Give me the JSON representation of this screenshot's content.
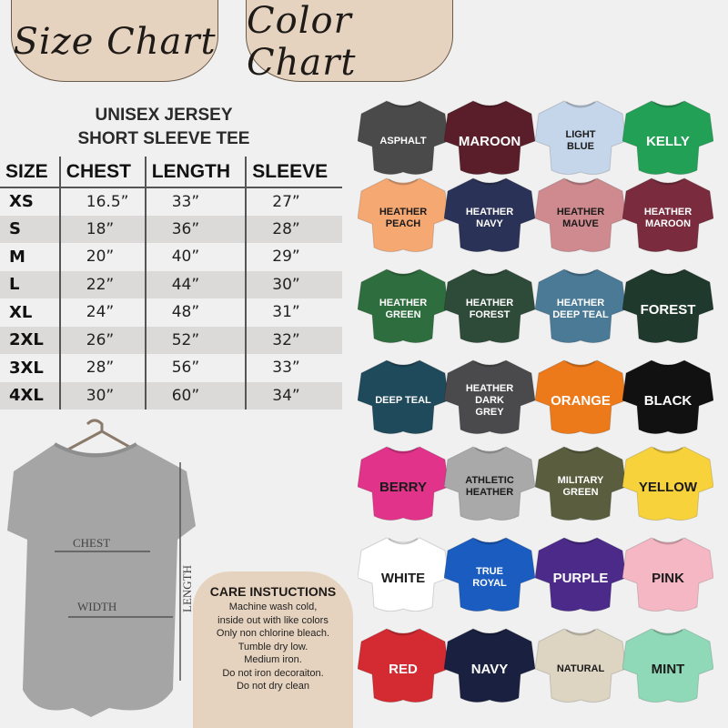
{
  "headers": {
    "size_chart": "Size Chart",
    "color_chart": "Color Chart"
  },
  "size_table": {
    "title_line1": "UNISEX JERSEY",
    "title_line2": "SHORT SLEEVE TEE",
    "columns": [
      "SIZE",
      "CHEST",
      "LENGTH",
      "SLEEVE"
    ],
    "rows": [
      [
        "XS",
        "16.5”",
        "33”",
        "27”"
      ],
      [
        "S",
        "18”",
        "36”",
        "28”"
      ],
      [
        "M",
        "20”",
        "40”",
        "29”"
      ],
      [
        "L",
        "22”",
        "44”",
        "30”"
      ],
      [
        "XL",
        "24”",
        "48”",
        "31”"
      ],
      [
        "2XL",
        "26”",
        "52”",
        "32”"
      ],
      [
        "3XL",
        "28”",
        "56”",
        "33”"
      ],
      [
        "4XL",
        "30”",
        "60”",
        "34”"
      ]
    ]
  },
  "tee_labels": {
    "chest": "CHEST",
    "width": "WIDTH",
    "length": "LENGTH"
  },
  "care": {
    "title": "CARE INSTUCTIONS",
    "lines": [
      "Machine wash cold,",
      "inside out with like colors",
      "Only non chlorine bleach.",
      "Tumble dry low.",
      "Medium iron.",
      "Do not iron decoraiton.",
      "Do not dry clean"
    ]
  },
  "colors": [
    {
      "name": "ASPHALT",
      "hex": "#4a4a4a",
      "text": "#ffffff"
    },
    {
      "name": "MAROON",
      "hex": "#5a1e2a",
      "text": "#ffffff"
    },
    {
      "name": "LIGHT BLUE",
      "hex": "#c5d6ea",
      "text": "#1a1a1a"
    },
    {
      "name": "KELLY",
      "hex": "#22a055",
      "text": "#ffffff"
    },
    {
      "name": "HEATHER PEACH",
      "hex": "#f5a872",
      "text": "#1a1a1a"
    },
    {
      "name": "HEATHER NAVY",
      "hex": "#2b3257",
      "text": "#ffffff"
    },
    {
      "name": "HEATHER MAUVE",
      "hex": "#cf8a8f",
      "text": "#1a1a1a"
    },
    {
      "name": "HEATHER MAROON",
      "hex": "#7a2c3e",
      "text": "#ffffff"
    },
    {
      "name": "HEATHER GREEN",
      "hex": "#2e6e3e",
      "text": "#ffffff"
    },
    {
      "name": "HEATHER FOREST",
      "hex": "#2e4a38",
      "text": "#ffffff"
    },
    {
      "name": "HEATHER DEEP TEAL",
      "hex": "#4a7a96",
      "text": "#ffffff"
    },
    {
      "name": "FOREST",
      "hex": "#1f3a2c",
      "text": "#ffffff"
    },
    {
      "name": "DEEP TEAL",
      "hex": "#1e4a5c",
      "text": "#ffffff"
    },
    {
      "name": "HEATHER DARK GREY",
      "hex": "#4a4a4c",
      "text": "#ffffff"
    },
    {
      "name": "ORANGE",
      "hex": "#ec7a1a",
      "text": "#ffffff"
    },
    {
      "name": "BLACK",
      "hex": "#111111",
      "text": "#ffffff"
    },
    {
      "name": "BERRY",
      "hex": "#e2338a",
      "text": "#1a1a1a"
    },
    {
      "name": "ATHLETIC HEATHER",
      "hex": "#a9a9a9",
      "text": "#1a1a1a"
    },
    {
      "name": "MILITARY GREEN",
      "hex": "#5a5e3e",
      "text": "#ffffff"
    },
    {
      "name": "YELLOW",
      "hex": "#f7d23a",
      "text": "#1a1a1a"
    },
    {
      "name": "WHITE",
      "hex": "#ffffff",
      "text": "#1a1a1a"
    },
    {
      "name": "TRUE ROYAL",
      "hex": "#1a5cc0",
      "text": "#ffffff"
    },
    {
      "name": "PURPLE",
      "hex": "#4c2a8a",
      "text": "#ffffff"
    },
    {
      "name": "PINK",
      "hex": "#f6b7c4",
      "text": "#1a1a1a"
    },
    {
      "name": "RED",
      "hex": "#d42a32",
      "text": "#ffffff"
    },
    {
      "name": "NAVY",
      "hex": "#1a2040",
      "text": "#ffffff"
    },
    {
      "name": "NATURAL",
      "hex": "#ddd5c2",
      "text": "#1a1a1a"
    },
    {
      "name": "MINT",
      "hex": "#8fd9b8",
      "text": "#1a1a1a"
    }
  ]
}
